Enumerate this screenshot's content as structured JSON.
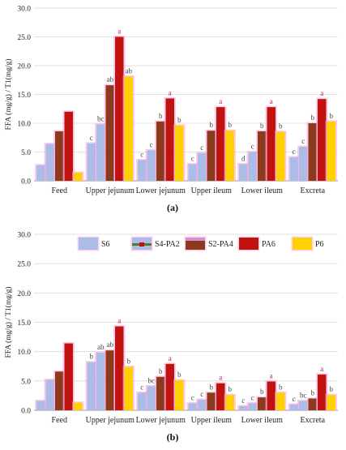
{
  "panel_a_caption": "(a)",
  "panel_b_caption": "(b)",
  "colors": {
    "S6": "#a9bde8",
    "S4-PA2": "#a9bde8",
    "S2-PA4": "#8b3a1e",
    "PA6": "#c0120f",
    "P6": "#ffd100",
    "glow": "#ff9fd6",
    "grid": "#d9d9d9",
    "axis": "#999999",
    "letter": "#c2185b"
  },
  "chart_data": [
    {
      "type": "bar",
      "panel": "a",
      "ylabel": "FFA (mg/g) / T1(mg/g)",
      "ylim": [
        0,
        30
      ],
      "yticks": [
        "0.0",
        "5.0",
        "10.0",
        "15.0",
        "20.0",
        "25.0",
        "30.0"
      ],
      "grid": true,
      "legend": "none",
      "categories": [
        "Feed",
        "Upper jejunum",
        "Lower jejunum",
        "Upper ileum",
        "Lower ileum",
        "Excreta"
      ],
      "series": [
        {
          "name": "S6",
          "values": [
            2.7,
            6.5,
            3.6,
            2.9,
            2.9,
            4.1
          ],
          "letters": [
            "",
            "c",
            "c",
            "c",
            "d",
            "c"
          ]
        },
        {
          "name": "S4-PA2",
          "values": [
            6.4,
            9.8,
            5.3,
            4.8,
            5.0,
            5.9
          ],
          "letters": [
            "",
            "bc",
            "c",
            "c",
            "c",
            "c"
          ]
        },
        {
          "name": "S2-PA4",
          "values": [
            8.6,
            16.6,
            10.3,
            8.7,
            8.6,
            10.0
          ],
          "letters": [
            "",
            "ab",
            "b",
            "b",
            "b",
            "b"
          ]
        },
        {
          "name": "PA6",
          "values": [
            12.0,
            25.0,
            14.3,
            12.8,
            12.8,
            14.2
          ],
          "letters": [
            "",
            "a",
            "a",
            "a",
            "a",
            "a"
          ]
        },
        {
          "name": "P6",
          "values": [
            1.4,
            18.1,
            9.6,
            8.7,
            8.5,
            10.3
          ],
          "letters": [
            "",
            "ab",
            "b",
            "b",
            "b",
            "b"
          ]
        }
      ]
    },
    {
      "type": "bar",
      "panel": "b",
      "ylabel": "FFA (mg/g) / T1(mg/g)",
      "ylim": [
        0,
        30
      ],
      "yticks": [
        "0.0",
        "5.0",
        "10.0",
        "15.0",
        "20.0",
        "25.0",
        "30.0"
      ],
      "grid": true,
      "legend": "top",
      "categories": [
        "Feed",
        "Upper jejunum",
        "Lower jejunum",
        "Upper ileum",
        "Lower ileum",
        "Excreta"
      ],
      "series": [
        {
          "name": "S6",
          "values": [
            1.6,
            8.2,
            3.0,
            1.2,
            0.7,
            1.0
          ],
          "letters": [
            "",
            "b",
            "c",
            "c",
            "c",
            "c"
          ]
        },
        {
          "name": "S4-PA2",
          "values": [
            5.2,
            9.8,
            4.1,
            1.8,
            1.2,
            1.6
          ],
          "letters": [
            "",
            "ab",
            "bc",
            "c",
            "c",
            "bc"
          ]
        },
        {
          "name": "S2-PA4",
          "values": [
            6.6,
            10.2,
            5.7,
            3.0,
            2.2,
            2.0
          ],
          "letters": [
            "",
            "ab",
            "b",
            "b",
            "b",
            "b"
          ]
        },
        {
          "name": "PA6",
          "values": [
            11.4,
            14.3,
            7.9,
            4.6,
            4.9,
            6.1
          ],
          "letters": [
            "",
            "a",
            "a",
            "a",
            "a",
            "a"
          ]
        },
        {
          "name": "P6",
          "values": [
            1.3,
            7.4,
            5.1,
            2.6,
            3.0,
            2.6
          ],
          "letters": [
            "",
            "b",
            "b",
            "b",
            "b",
            "b"
          ]
        }
      ]
    }
  ]
}
